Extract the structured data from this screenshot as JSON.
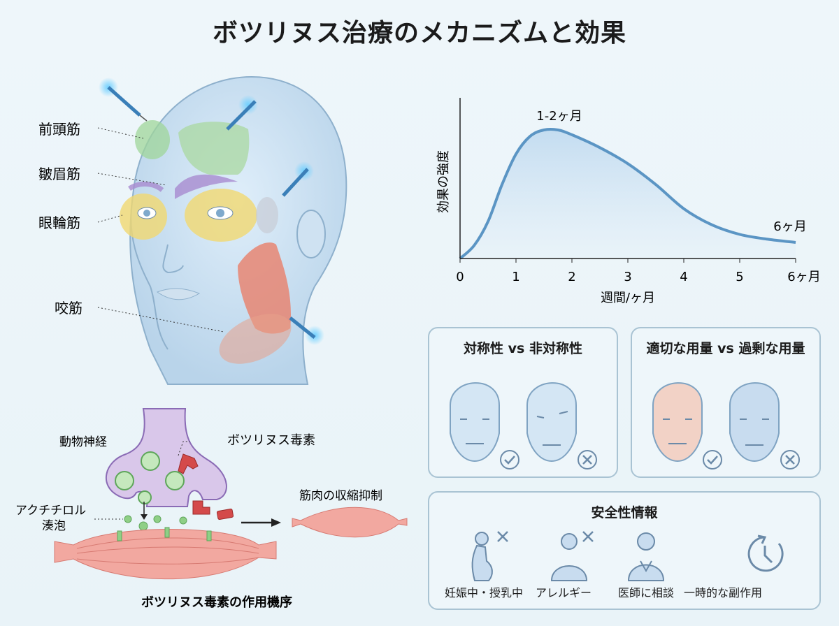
{
  "title": "ボツリヌス治療のメカニズムと効果",
  "face_labels": {
    "frontalis": "前頭筋",
    "corrugator": "皺眉筋",
    "orbicularis": "眼輪筋",
    "masseter": "咬筋"
  },
  "mechanism": {
    "nerve_label": "動物神経",
    "toxin_label": "ボツリヌス毒素",
    "vesicle_label_line1": "アクチチロル",
    "vesicle_label_line2": "湊泡",
    "result_label": "筋肉の収縮抑制",
    "caption": "ボツリヌス毒素の作用機序"
  },
  "chart_data": {
    "type": "area",
    "xlabel": "週間/ヶ月",
    "ylabel": "効果の強度",
    "x_ticks": [
      "0",
      "1",
      "2",
      "3",
      "4",
      "5",
      "6ヶ月"
    ],
    "xlim": [
      0,
      6
    ],
    "ylim": [
      0,
      1
    ],
    "x": [
      0,
      0.25,
      0.5,
      0.75,
      1,
      1.25,
      1.5,
      1.75,
      2,
      2.5,
      3,
      3.5,
      4,
      4.5,
      5,
      5.5,
      6
    ],
    "y": [
      0,
      0.08,
      0.23,
      0.46,
      0.65,
      0.76,
      0.8,
      0.8,
      0.77,
      0.69,
      0.59,
      0.46,
      0.31,
      0.21,
      0.15,
      0.12,
      0.1
    ],
    "annotations": {
      "peak": "1-2ヶ月",
      "end": "6ヶ月"
    },
    "grid": false,
    "color": "#5b95c4"
  },
  "symmetry_panel": {
    "title": "対称性 vs 非対称性",
    "left_status": "check",
    "right_status": "cross"
  },
  "dose_panel": {
    "title": "適切な用量 vs 過剰な用量",
    "left_status": "check",
    "right_status": "cross"
  },
  "safety_panel": {
    "title": "安全性情報",
    "items": [
      {
        "label": "妊娠中・授乳中",
        "icon": "pregnant-woman-icon",
        "cross": true
      },
      {
        "label": "アレルギー",
        "icon": "allergy-person-icon",
        "cross": true
      },
      {
        "label": "医師に相談",
        "icon": "doctor-icon",
        "cross": false
      },
      {
        "label": "一時的な副作用",
        "icon": "clock-icon",
        "cross": false
      }
    ]
  },
  "colors": {
    "accent": "#5b95c4",
    "muscle": "#e58c80",
    "nerve": "#d8c6e8",
    "vesicle": "#8fcf86",
    "toxin": "#d44a4a"
  }
}
